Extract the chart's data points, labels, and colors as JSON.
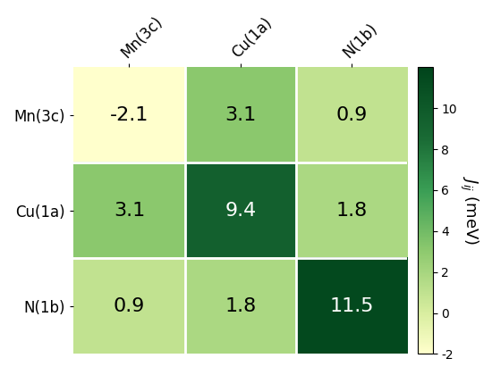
{
  "labels": [
    "Mn(3c)",
    "Cu(1a)",
    "N(1b)"
  ],
  "matrix": [
    [
      -2.1,
      3.1,
      0.9
    ],
    [
      3.1,
      9.4,
      1.8
    ],
    [
      0.9,
      1.8,
      11.5
    ]
  ],
  "vmin": -2,
  "vmax": 12,
  "colorbar_ticks": [
    -2,
    0,
    2,
    4,
    6,
    8,
    10
  ],
  "colorbar_label_italic": "$J_{ij}$",
  "colorbar_label_normal": " (meV)",
  "cmap_colors": [
    [
      0.0,
      "#ffffcc"
    ],
    [
      0.14,
      "#d9eea0"
    ],
    [
      0.36,
      "#8dc96e"
    ],
    [
      0.57,
      "#3a9e55"
    ],
    [
      0.75,
      "#1a6b35"
    ],
    [
      1.0,
      "#00441b"
    ]
  ],
  "text_color_threshold": 6.5,
  "fontsize_annot": 16,
  "fontsize_labels": 12,
  "fontsize_colorbar": 13,
  "figsize": [
    5.5,
    4.2
  ]
}
